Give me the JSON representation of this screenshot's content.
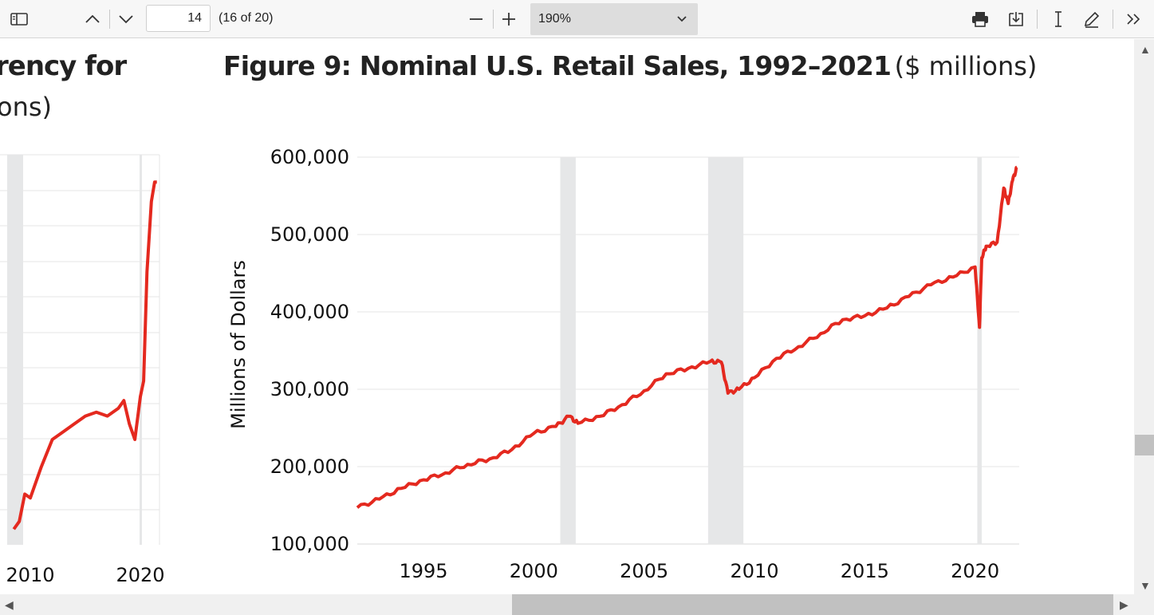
{
  "toolbar": {
    "page_current": "14",
    "page_count": "(16 of 20)",
    "zoom": "190%"
  },
  "left_fragment": {
    "title_line1": "rency for",
    "title_line2": "ons)",
    "x_ticks": [
      "2010",
      "2020"
    ]
  },
  "figure": {
    "title_bold": "Figure 9: Nominal U.S. Retail Sales, 1992–2021",
    "title_unit": "($ millions)"
  },
  "colors": {
    "line": "#e4291f",
    "recession": "#e6e7e8",
    "grid": "#e4e4e4"
  },
  "chart_data": [
    {
      "type": "line",
      "title": "Figure 9: Nominal U.S. Retail Sales, 1992–2021 ($ millions)",
      "ylabel": "Millions of Dollars",
      "xlabel": "",
      "x_ticks": [
        1995,
        2000,
        2005,
        2010,
        2015,
        2020
      ],
      "y_ticks": [
        100000,
        200000,
        300000,
        400000,
        500000,
        600000
      ],
      "y_tick_labels": [
        "100,000",
        "200,000",
        "300,000",
        "400,000",
        "500,000",
        "600,000"
      ],
      "xlim": [
        1992,
        2022
      ],
      "ylim": [
        100000,
        600000
      ],
      "grid": true,
      "recession_bands": [
        [
          2001.2,
          2001.9
        ],
        [
          2007.9,
          2009.5
        ],
        [
          2020.1,
          2020.3
        ]
      ],
      "x": [
        1992,
        1993,
        1994,
        1995,
        1996,
        1997,
        1998,
        1999,
        2000,
        2001,
        2001.6,
        2002,
        2003,
        2004,
        2005,
        2006,
        2007,
        2008,
        2008.5,
        2008.8,
        2009.3,
        2010,
        2011,
        2012,
        2013,
        2014,
        2015,
        2016,
        2017,
        2018,
        2019,
        2020,
        2020.2,
        2020.3,
        2020.5,
        2021,
        2021.3,
        2021.5,
        2021.7,
        2021.9
      ],
      "values": [
        147000,
        158000,
        172000,
        183000,
        192000,
        203000,
        210000,
        222000,
        243000,
        252000,
        265000,
        256000,
        265000,
        280000,
        298000,
        320000,
        327000,
        336000,
        335000,
        295000,
        300000,
        315000,
        340000,
        355000,
        372000,
        390000,
        395000,
        405000,
        420000,
        435000,
        445000,
        458000,
        380000,
        470000,
        485000,
        490000,
        560000,
        540000,
        570000,
        587000
      ]
    },
    {
      "type": "line",
      "title": "rency for ons)",
      "x_ticks": [
        2010,
        2020
      ],
      "x": [
        2008.5,
        2009,
        2009.5,
        2010,
        2011,
        2012,
        2013,
        2014,
        2015,
        2016,
        2017,
        2018,
        2018.5,
        2019,
        2019.5,
        2020,
        2020.3,
        2020.6,
        2021,
        2021.3,
        2021.5
      ],
      "y_rel": [
        0.04,
        0.06,
        0.13,
        0.12,
        0.2,
        0.27,
        0.29,
        0.31,
        0.33,
        0.34,
        0.33,
        0.35,
        0.37,
        0.31,
        0.27,
        0.38,
        0.42,
        0.7,
        0.88,
        0.93,
        0.93
      ]
    }
  ]
}
